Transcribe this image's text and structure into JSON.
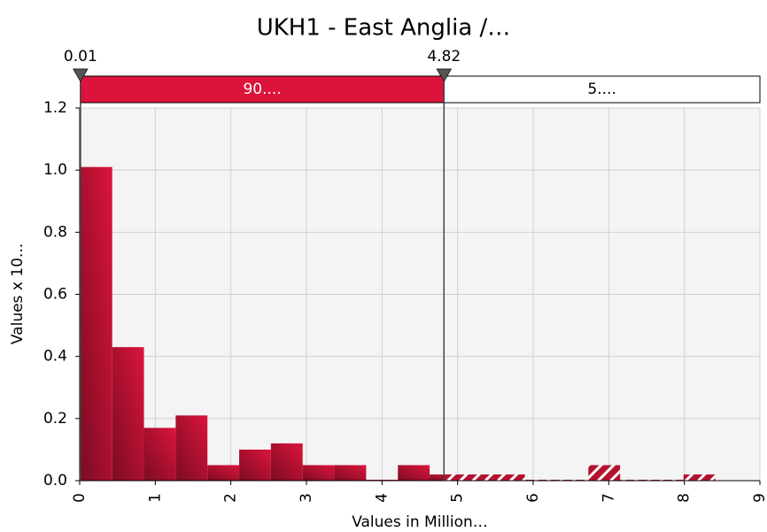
{
  "chart_data": {
    "type": "histogram",
    "title": "UKH1 - East Anglia /…",
    "xlabel": "Values in Million…",
    "ylabel": "Values x 10...",
    "bins": [
      0.01,
      0.43,
      0.85,
      1.27,
      1.69,
      2.11,
      2.53,
      2.95,
      3.37,
      3.79,
      4.21,
      4.63,
      5.05,
      5.47,
      5.89,
      6.31,
      6.73,
      7.15,
      7.57,
      7.99,
      8.41
    ],
    "values": [
      1.01,
      0.43,
      0.17,
      0.21,
      0.05,
      0.1,
      0.12,
      0.05,
      0.05,
      0.003,
      0.05,
      0.02,
      0.02,
      0.02,
      0.003,
      0.003,
      0.05,
      0.003,
      0.003,
      0.02
    ],
    "color": "#dc143c",
    "xlim": [
      0,
      9
    ],
    "xticks": [
      0,
      1,
      2,
      3,
      4,
      5,
      6,
      7,
      8,
      9
    ],
    "ylim": [
      0,
      1.2
    ],
    "yticks": [
      {
        "value": 0,
        "label": "0.0"
      },
      {
        "value": 0.2,
        "label": "0.2"
      },
      {
        "value": 0.4,
        "label": "0.4"
      },
      {
        "value": 0.6,
        "label": "0.6"
      },
      {
        "value": 0.8,
        "label": "0.8"
      },
      {
        "value": 1,
        "label": "1.0"
      },
      {
        "value": 1.2,
        "label": "1.2"
      }
    ],
    "grid": true,
    "delimiters": [
      0.01,
      4.82
    ],
    "band_labels": [
      "90....",
      "5...."
    ]
  }
}
